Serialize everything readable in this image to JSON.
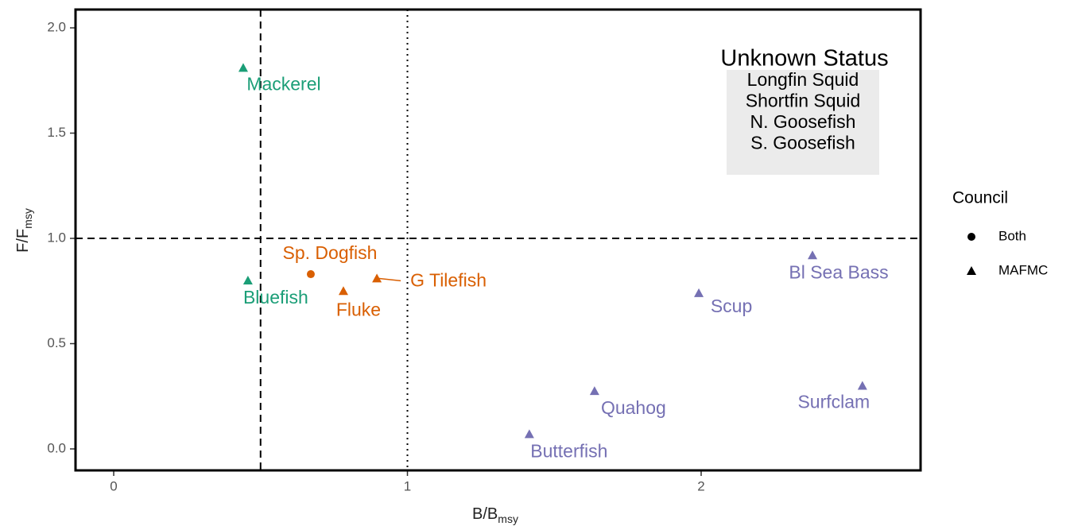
{
  "chart_data": {
    "type": "scatter",
    "xlabel": "B/B",
    "xlabel_sub": "msy",
    "ylabel": "F/F",
    "ylabel_sub": "msy",
    "xlim": [
      -0.13,
      2.747
    ],
    "ylim": [
      -0.102,
      2.087
    ],
    "xticks": [
      0,
      1,
      2
    ],
    "yticks": [
      {
        "value": 0,
        "label": "0.0"
      },
      0.5,
      {
        "value": 1,
        "label": "1.0"
      },
      1.5,
      {
        "value": 2,
        "label": "2.0"
      }
    ],
    "vlines": [
      {
        "value": 0.5,
        "style": "dashed"
      },
      {
        "value": 1,
        "style": "dotted"
      }
    ],
    "hlines": [
      {
        "value": 1,
        "style": "dashed"
      }
    ],
    "points": [
      {
        "label": "Mackerel",
        "x": 0.441,
        "y": 1.81,
        "council": "MAFMC",
        "color": "#1b9e77"
      },
      {
        "label": "Bluefish",
        "x": 0.457,
        "y": 0.8,
        "council": "MAFMC",
        "color": "#1b9e77"
      },
      {
        "label": "Sp. Dogfish",
        "x": 0.671,
        "y": 0.83,
        "council": "Both",
        "color": "#d95f02"
      },
      {
        "label": "Fluke",
        "x": 0.782,
        "y": 0.75,
        "council": "MAFMC",
        "color": "#d95f02"
      },
      {
        "label": "G Tilefish",
        "x": 0.896,
        "y": 0.81,
        "council": "MAFMC",
        "color": "#d95f02"
      },
      {
        "label": "Bl Sea Bass",
        "x": 2.379,
        "y": 0.92,
        "council": "MAFMC",
        "color": "#7570b3"
      },
      {
        "label": "Scup",
        "x": 1.992,
        "y": 0.74,
        "council": "MAFMC",
        "color": "#7570b3"
      },
      {
        "label": "Surfclam",
        "x": 2.549,
        "y": 0.3,
        "council": "MAFMC",
        "color": "#7570b3"
      },
      {
        "label": "Quahog",
        "x": 1.637,
        "y": 0.275,
        "council": "MAFMC",
        "color": "#7570b3"
      },
      {
        "label": "Butterfish",
        "x": 1.415,
        "y": 0.07,
        "council": "MAFMC",
        "color": "#7570b3"
      }
    ],
    "legend": {
      "title": "Council",
      "entries": [
        {
          "label": "Both",
          "shape": "circle"
        },
        {
          "label": "MAFMC",
          "shape": "triangle"
        }
      ]
    },
    "annotation": {
      "title": "Unknown Status",
      "items": [
        "Longfin Squid",
        "Shortfin Squid",
        "N. Goosefish",
        "S. Goosefish"
      ]
    }
  }
}
